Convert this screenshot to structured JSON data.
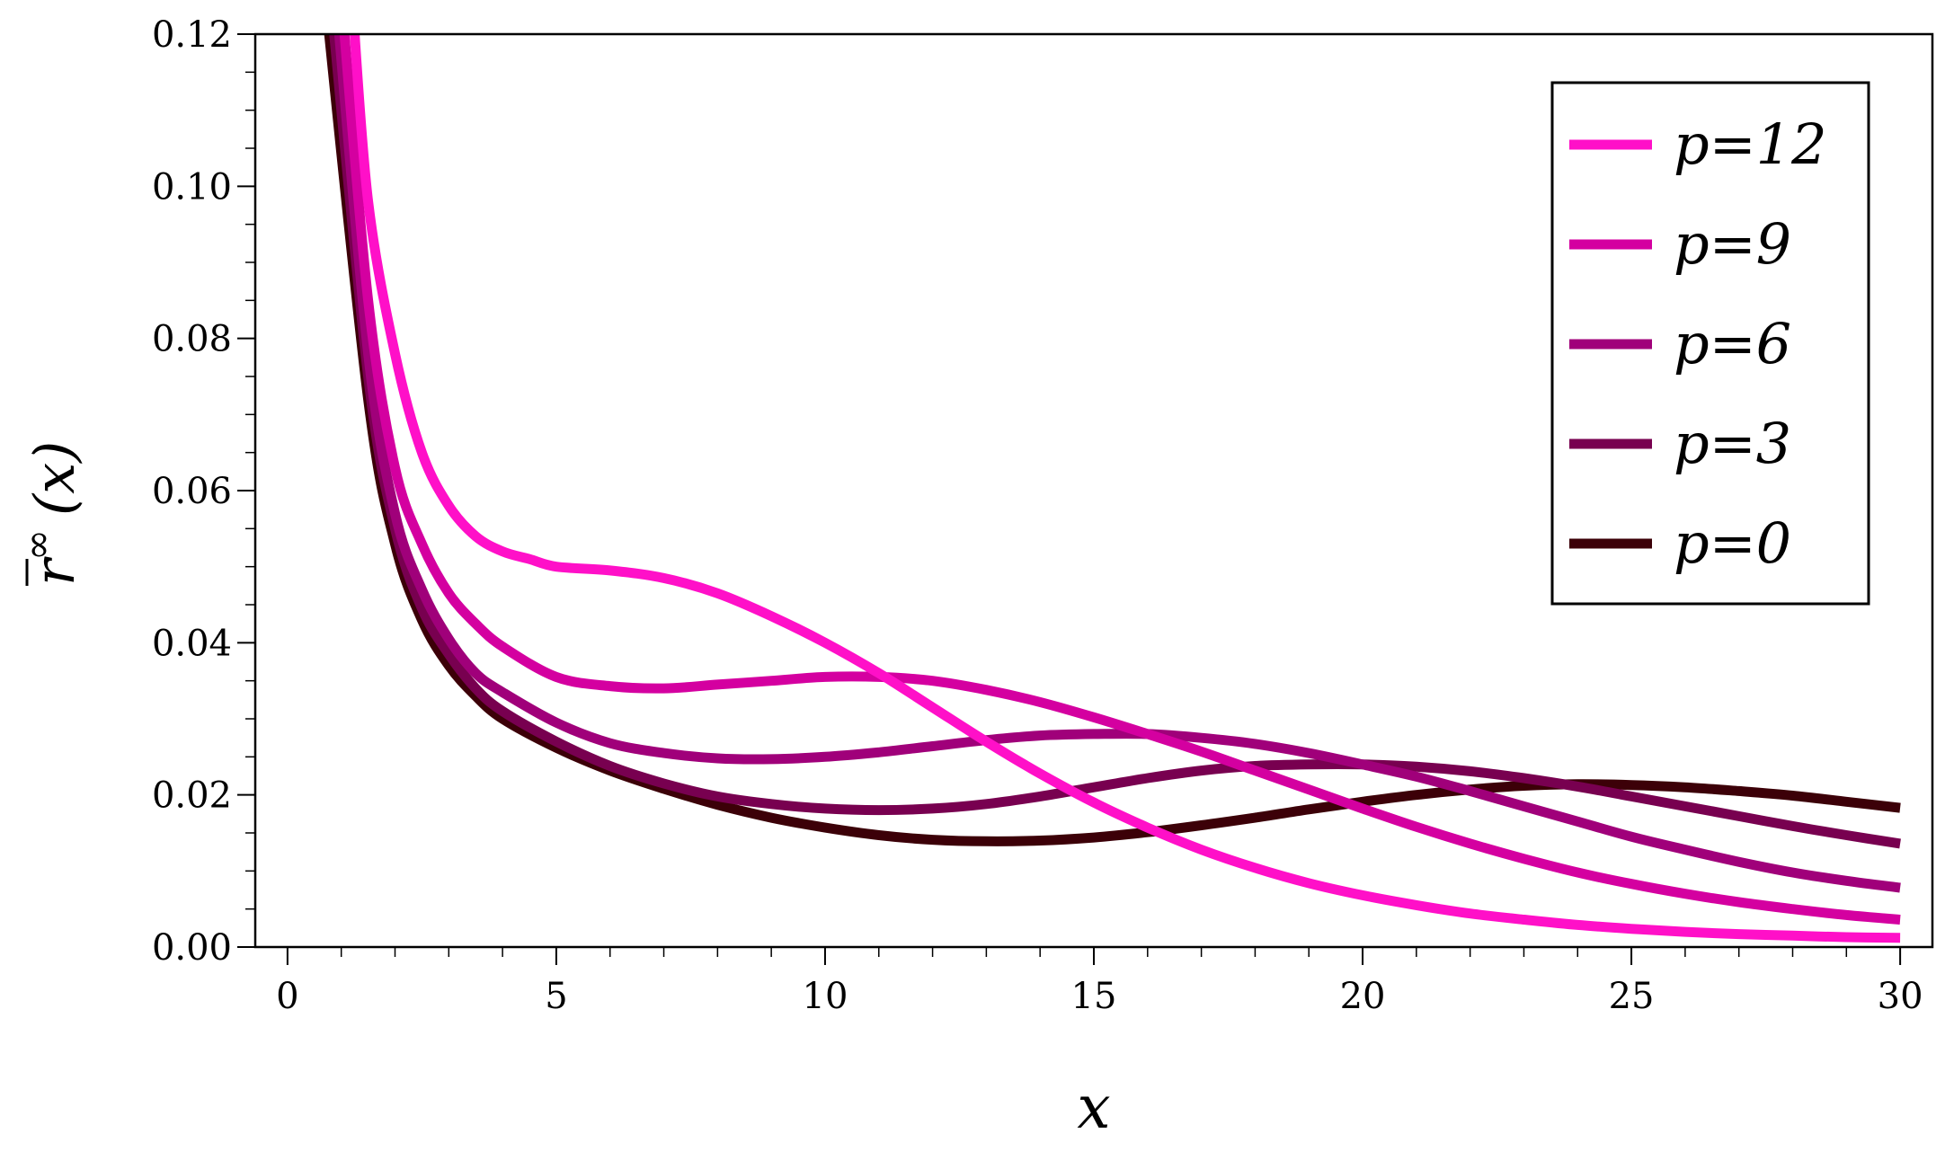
{
  "chart_data": {
    "type": "line",
    "xlabel": "x",
    "ylabel_main": "r",
    "ylabel_sup": "∞",
    "ylabel_arg": "(x)",
    "xlim": [
      -0.6,
      30.6
    ],
    "ylim": [
      0,
      0.12
    ],
    "xticks": [
      0,
      5,
      10,
      15,
      20,
      25,
      30
    ],
    "xtick_labels": [
      "0",
      "5",
      "10",
      "15",
      "20",
      "25",
      "30"
    ],
    "yticks": [
      0,
      0.02,
      0.04,
      0.06,
      0.08,
      0.1,
      0.12
    ],
    "ytick_labels": [
      "0.00",
      "0.02",
      "0.04",
      "0.06",
      "0.08",
      "0.10",
      "0.12"
    ],
    "grid": false,
    "legend_position": "top-right",
    "series": [
      {
        "name": "p=12",
        "color": "#ff10c8",
        "x": [
          1.2,
          1.5,
          2,
          2.5,
          3,
          3.5,
          4,
          4.5,
          5,
          6,
          7,
          8,
          9,
          10,
          11,
          12,
          13,
          14,
          15,
          16,
          17,
          18,
          19,
          20,
          21,
          22,
          23,
          24,
          25,
          26,
          27,
          28,
          29,
          30
        ],
        "values": [
          0.125,
          0.098,
          0.078,
          0.065,
          0.058,
          0.054,
          0.052,
          0.051,
          0.05,
          0.0495,
          0.0485,
          0.0465,
          0.0435,
          0.04,
          0.036,
          0.0315,
          0.027,
          0.0228,
          0.019,
          0.0157,
          0.0128,
          0.0104,
          0.0084,
          0.0068,
          0.0055,
          0.0044,
          0.0036,
          0.0029,
          0.0024,
          0.002,
          0.0017,
          0.0015,
          0.0013,
          0.0012
        ]
      },
      {
        "name": "p=9",
        "color": "#d400a0",
        "x": [
          1.0,
          1.5,
          2,
          2.5,
          3,
          3.5,
          4,
          5,
          6,
          7,
          8,
          9,
          10,
          11,
          12,
          13,
          14,
          15,
          16,
          17,
          18,
          19,
          20,
          21,
          22,
          23,
          24,
          25,
          26,
          27,
          28,
          29,
          30
        ],
        "values": [
          0.125,
          0.085,
          0.063,
          0.053,
          0.0465,
          0.0425,
          0.0395,
          0.0355,
          0.0343,
          0.034,
          0.0345,
          0.035,
          0.0355,
          0.0355,
          0.035,
          0.0338,
          0.0322,
          0.0302,
          0.028,
          0.0257,
          0.0232,
          0.0207,
          0.0182,
          0.0158,
          0.0136,
          0.0116,
          0.0098,
          0.0083,
          0.007,
          0.0059,
          0.005,
          0.0042,
          0.0036
        ]
      },
      {
        "name": "p=6",
        "color": "#a0007a",
        "x": [
          0.9,
          1.5,
          2,
          2.5,
          3,
          3.5,
          4,
          5,
          6,
          7,
          8,
          9,
          10,
          11,
          12,
          13,
          14,
          15,
          16,
          17,
          18,
          19,
          20,
          21,
          22,
          23,
          24,
          25,
          26,
          27,
          28,
          29,
          30
        ],
        "values": [
          0.125,
          0.078,
          0.057,
          0.047,
          0.0405,
          0.036,
          0.0335,
          0.0295,
          0.0268,
          0.0255,
          0.0248,
          0.0247,
          0.025,
          0.0256,
          0.0264,
          0.0272,
          0.0278,
          0.028,
          0.028,
          0.0275,
          0.0267,
          0.0255,
          0.024,
          0.0224,
          0.0205,
          0.0185,
          0.0165,
          0.0145,
          0.0128,
          0.0112,
          0.0098,
          0.0087,
          0.0078
        ]
      },
      {
        "name": "p=3",
        "color": "#780050",
        "x": [
          0.8,
          1.5,
          2,
          2.5,
          3,
          3.5,
          4,
          5,
          6,
          7,
          8,
          9,
          10,
          11,
          12,
          13,
          14,
          15,
          16,
          17,
          18,
          19,
          20,
          21,
          22,
          23,
          24,
          25,
          26,
          27,
          28,
          29,
          30
        ],
        "values": [
          0.125,
          0.075,
          0.055,
          0.0445,
          0.0385,
          0.034,
          0.031,
          0.027,
          0.0238,
          0.0215,
          0.0198,
          0.0188,
          0.0182,
          0.018,
          0.0182,
          0.0188,
          0.0198,
          0.021,
          0.0222,
          0.0232,
          0.0238,
          0.024,
          0.024,
          0.0237,
          0.0231,
          0.0222,
          0.0211,
          0.0198,
          0.0185,
          0.0172,
          0.0159,
          0.0147,
          0.0136
        ]
      },
      {
        "name": "p=0",
        "color": "#3c0008",
        "x": [
          0.7,
          1.5,
          2,
          2.5,
          3,
          3.5,
          4,
          5,
          6,
          7,
          8,
          9,
          10,
          11,
          12,
          13,
          14,
          15,
          16,
          17,
          18,
          19,
          20,
          21,
          22,
          23,
          24,
          25,
          26,
          27,
          28,
          29,
          30
        ],
        "values": [
          0.125,
          0.072,
          0.053,
          0.043,
          0.037,
          0.033,
          0.03,
          0.0262,
          0.0232,
          0.0208,
          0.0187,
          0.017,
          0.0157,
          0.0147,
          0.0141,
          0.0139,
          0.014,
          0.0144,
          0.0151,
          0.016,
          0.017,
          0.0181,
          0.0191,
          0.02,
          0.0207,
          0.0212,
          0.0214,
          0.0213,
          0.021,
          0.0205,
          0.0199,
          0.0191,
          0.0183
        ]
      }
    ]
  }
}
